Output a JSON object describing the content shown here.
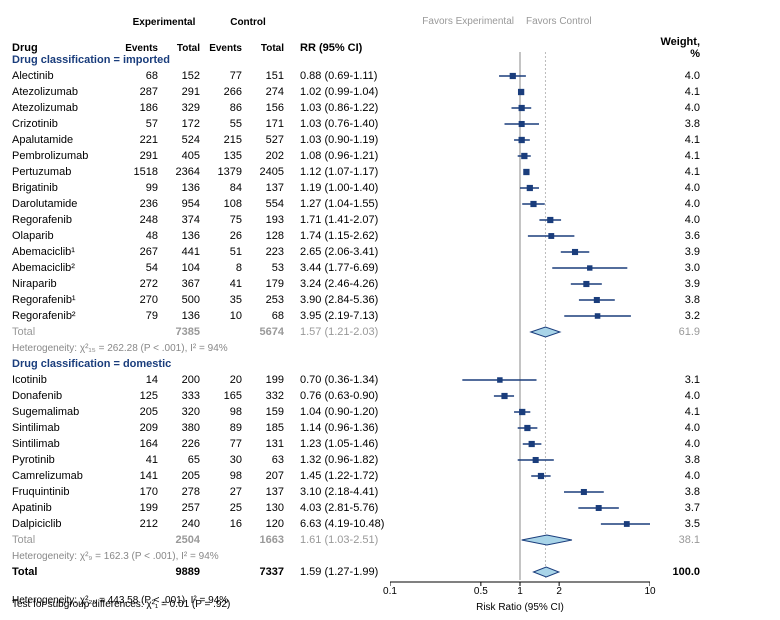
{
  "title": {
    "drug": "Drug",
    "exp": "Experimental",
    "expEv": "Events",
    "expTot": "Total",
    "ctrl": "Control",
    "ctrlEv": "Events",
    "ctrlTot": "Total",
    "rr": "RR (95% CI)",
    "favExp": "Favors Experimental",
    "favCtrl": "Favors Control",
    "weight": "Weight, %"
  },
  "scale": {
    "min": 0.1,
    "max": 10,
    "ticks": [
      0.1,
      0.5,
      1,
      2,
      10
    ],
    "ref": 1,
    "label": "Risk Ratio (95% CI)"
  },
  "colors": {
    "marker": "#1a3d7c",
    "diamond_fill": "#a8d4e8",
    "diamond_stroke": "#1a3d7c",
    "text_muted": "#999",
    "text_header": "#000",
    "subheader": "#1a3d7c",
    "gridline": "#ccc",
    "ref_line": "#888"
  },
  "groups": [
    {
      "name": "Drug classification = imported",
      "rows": [
        {
          "drug": "Alectinib",
          "ee": 68,
          "et": 152,
          "ce": 77,
          "ct": 151,
          "rr": 0.88,
          "lo": 0.69,
          "hi": 1.11,
          "w": 4.0
        },
        {
          "drug": "Atezolizumab",
          "ee": 287,
          "et": 291,
          "ce": 266,
          "ct": 274,
          "rr": 1.02,
          "lo": 0.99,
          "hi": 1.04,
          "w": 4.1
        },
        {
          "drug": "Atezolizumab",
          "ee": 186,
          "et": 329,
          "ce": 86,
          "ct": 156,
          "rr": 1.03,
          "lo": 0.86,
          "hi": 1.22,
          "w": 4.0
        },
        {
          "drug": "Crizotinib",
          "ee": 57,
          "et": 172,
          "ce": 55,
          "ct": 171,
          "rr": 1.03,
          "lo": 0.76,
          "hi": 1.4,
          "w": 3.8
        },
        {
          "drug": "Apalutamide",
          "ee": 221,
          "et": 524,
          "ce": 215,
          "ct": 527,
          "rr": 1.03,
          "lo": 0.9,
          "hi": 1.19,
          "w": 4.1
        },
        {
          "drug": "Pembrolizumab",
          "ee": 291,
          "et": 405,
          "ce": 135,
          "ct": 202,
          "rr": 1.08,
          "lo": 0.96,
          "hi": 1.21,
          "w": 4.1
        },
        {
          "drug": "Pertuzumab",
          "ee": 1518,
          "et": 2364,
          "ce": 1379,
          "ct": 2405,
          "rr": 1.12,
          "lo": 1.07,
          "hi": 1.17,
          "w": 4.1
        },
        {
          "drug": "Brigatinib",
          "ee": 99,
          "et": 136,
          "ce": 84,
          "ct": 137,
          "rr": 1.19,
          "lo": 1.0,
          "hi": 1.4,
          "w": 4.0
        },
        {
          "drug": "Darolutamide",
          "ee": 236,
          "et": 954,
          "ce": 108,
          "ct": 554,
          "rr": 1.27,
          "lo": 1.04,
          "hi": 1.55,
          "w": 4.0
        },
        {
          "drug": "Regorafenib",
          "ee": 248,
          "et": 374,
          "ce": 75,
          "ct": 193,
          "rr": 1.71,
          "lo": 1.41,
          "hi": 2.07,
          "w": 4.0
        },
        {
          "drug": "Olaparib",
          "ee": 48,
          "et": 136,
          "ce": 26,
          "ct": 128,
          "rr": 1.74,
          "lo": 1.15,
          "hi": 2.62,
          "w": 3.6
        },
        {
          "drug": "Abemaciclib¹",
          "ee": 267,
          "et": 441,
          "ce": 51,
          "ct": 223,
          "rr": 2.65,
          "lo": 2.06,
          "hi": 3.41,
          "w": 3.9
        },
        {
          "drug": "Abemaciclib²",
          "ee": 54,
          "et": 104,
          "ce": 8,
          "ct": 53,
          "rr": 3.44,
          "lo": 1.77,
          "hi": 6.69,
          "w": 3.0
        },
        {
          "drug": "Niraparib",
          "ee": 272,
          "et": 367,
          "ce": 41,
          "ct": 179,
          "rr": 3.24,
          "lo": 2.46,
          "hi": 4.26,
          "w": 3.9
        },
        {
          "drug": "Regorafenib¹",
          "ee": 270,
          "et": 500,
          "ce": 35,
          "ct": 253,
          "rr": 3.9,
          "lo": 2.84,
          "hi": 5.36,
          "w": 3.8
        },
        {
          "drug": "Regorafenib²",
          "ee": 79,
          "et": 136,
          "ce": 10,
          "ct": 68,
          "rr": 3.95,
          "lo": 2.19,
          "hi": 7.13,
          "w": 3.2
        }
      ],
      "total": {
        "et": 7385,
        "ct": 5674,
        "rr": 1.57,
        "lo": 1.21,
        "hi": 2.03,
        "w": 61.9
      },
      "het": "Heterogeneity: χ²₁₅ = 262.28 (P < .001), I² = 94%"
    },
    {
      "name": "Drug classification = domestic",
      "rows": [
        {
          "drug": "Icotinib",
          "ee": 14,
          "et": 200,
          "ce": 20,
          "ct": 199,
          "rr": 0.7,
          "lo": 0.36,
          "hi": 1.34,
          "w": 3.1
        },
        {
          "drug": "Donafenib",
          "ee": 125,
          "et": 333,
          "ce": 165,
          "ct": 332,
          "rr": 0.76,
          "lo": 0.63,
          "hi": 0.9,
          "w": 4.0
        },
        {
          "drug": "Sugemalimab",
          "ee": 205,
          "et": 320,
          "ce": 98,
          "ct": 159,
          "rr": 1.04,
          "lo": 0.9,
          "hi": 1.2,
          "w": 4.1
        },
        {
          "drug": "Sintilimab",
          "ee": 209,
          "et": 380,
          "ce": 89,
          "ct": 185,
          "rr": 1.14,
          "lo": 0.96,
          "hi": 1.36,
          "w": 4.0
        },
        {
          "drug": "Sintilimab",
          "ee": 164,
          "et": 226,
          "ce": 77,
          "ct": 131,
          "rr": 1.23,
          "lo": 1.05,
          "hi": 1.46,
          "w": 4.0
        },
        {
          "drug": "Pyrotinib",
          "ee": 41,
          "et": 65,
          "ce": 30,
          "ct": 63,
          "rr": 1.32,
          "lo": 0.96,
          "hi": 1.82,
          "w": 3.8
        },
        {
          "drug": "Camrelizumab",
          "ee": 141,
          "et": 205,
          "ce": 98,
          "ct": 207,
          "rr": 1.45,
          "lo": 1.22,
          "hi": 1.72,
          "w": 4.0
        },
        {
          "drug": "Fruquintinib",
          "ee": 170,
          "et": 278,
          "ce": 27,
          "ct": 137,
          "rr": 3.1,
          "lo": 2.18,
          "hi": 4.41,
          "w": 3.8
        },
        {
          "drug": "Apatinib",
          "ee": 199,
          "et": 257,
          "ce": 25,
          "ct": 130,
          "rr": 4.03,
          "lo": 2.81,
          "hi": 5.76,
          "w": 3.7
        },
        {
          "drug": "Dalpiciclib",
          "ee": 212,
          "et": 240,
          "ce": 16,
          "ct": 120,
          "rr": 6.63,
          "lo": 4.19,
          "hi": 10.48,
          "w": 3.5
        }
      ],
      "total": {
        "et": 2504,
        "ct": 1663,
        "rr": 1.61,
        "lo": 1.03,
        "hi": 2.51,
        "w": 38.1
      },
      "het": "Heterogeneity: χ²₉ = 162.3 (P < .001), I² = 94%"
    }
  ],
  "grand": {
    "label": "Total",
    "et": 9889,
    "ct": 7337,
    "rr": 1.59,
    "lo": 1.27,
    "hi": 1.99,
    "w": 100.0,
    "het": "Heterogeneity: χ²₂₅ = 443.58 (P < .001), I² = 94%",
    "sub": "Test for subgroup differences: χ²₁ = 0.01 (P = .92)"
  }
}
